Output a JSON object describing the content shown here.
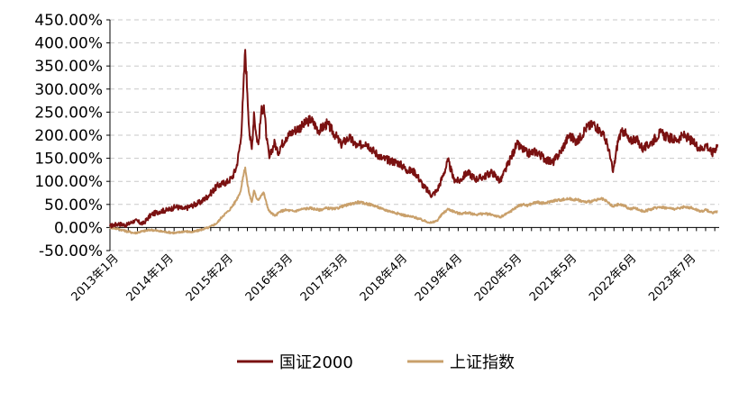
{
  "chart_data": {
    "type": "line",
    "title": "",
    "xlabel": "",
    "ylabel": "",
    "ylim": [
      -50,
      450
    ],
    "yticks": [
      "450.00%",
      "400.00%",
      "350.00%",
      "300.00%",
      "250.00%",
      "200.00%",
      "150.00%",
      "100.00%",
      "50.00%",
      "0.00%",
      "-50.00%"
    ],
    "ytick_values": [
      450,
      400,
      350,
      300,
      250,
      200,
      150,
      100,
      50,
      0,
      -50
    ],
    "xticks": [
      "2013年1月",
      "2014年1月",
      "2015年2月",
      "2016年3月",
      "2017年3月",
      "2018年4月",
      "2019年4月",
      "2020年5月",
      "2021年5月",
      "2022年6月",
      "2023年7月"
    ],
    "xtick_values": [
      2013.0,
      2014.0,
      2015.083,
      2016.167,
      2017.167,
      2018.25,
      2019.25,
      2020.333,
      2021.333,
      2022.417,
      2023.5
    ],
    "xlim": [
      2013.0,
      2024.08
    ],
    "grid": "horizontal dashed",
    "legend_position": "bottom",
    "series": [
      {
        "name": "国证2000",
        "color": "#7a1111",
        "x": [
          2013.0,
          2013.15,
          2013.3,
          2013.45,
          2013.6,
          2013.75,
          2013.9,
          2014.05,
          2014.2,
          2014.35,
          2014.5,
          2014.65,
          2014.8,
          2014.95,
          2015.05,
          2015.15,
          2015.22,
          2015.3,
          2015.38,
          2015.42,
          2015.46,
          2015.5,
          2015.54,
          2015.58,
          2015.62,
          2015.66,
          2015.7,
          2015.75,
          2015.8,
          2015.85,
          2015.9,
          2015.95,
          2016.0,
          2016.05,
          2016.1,
          2016.2,
          2016.35,
          2016.5,
          2016.65,
          2016.8,
          2016.95,
          2017.1,
          2017.2,
          2017.35,
          2017.5,
          2017.65,
          2017.8,
          2017.95,
          2018.1,
          2018.25,
          2018.4,
          2018.55,
          2018.7,
          2018.85,
          2018.95,
          2019.05,
          2019.15,
          2019.25,
          2019.35,
          2019.5,
          2019.65,
          2019.8,
          2019.95,
          2020.1,
          2020.25,
          2020.4,
          2020.5,
          2020.6,
          2020.75,
          2020.9,
          2021.05,
          2021.2,
          2021.35,
          2021.5,
          2021.65,
          2021.8,
          2021.95,
          2022.05,
          2022.15,
          2022.25,
          2022.35,
          2022.45,
          2022.55,
          2022.7,
          2022.85,
          2023.0,
          2023.15,
          2023.3,
          2023.45,
          2023.6,
          2023.75,
          2023.85,
          2023.95,
          2024.05
        ],
        "values": [
          3,
          8,
          5,
          15,
          8,
          28,
          35,
          38,
          45,
          40,
          48,
          55,
          70,
          90,
          95,
          100,
          108,
          130,
          190,
          280,
          385,
          290,
          200,
          170,
          250,
          200,
          180,
          250,
          265,
          190,
          150,
          170,
          185,
          160,
          175,
          195,
          210,
          220,
          235,
          210,
          225,
          200,
          180,
          195,
          175,
          185,
          165,
          150,
          145,
          140,
          125,
          120,
          90,
          70,
          80,
          110,
          145,
          105,
          100,
          120,
          105,
          110,
          120,
          100,
          140,
          180,
          170,
          160,
          165,
          150,
          140,
          165,
          200,
          185,
          215,
          225,
          205,
          180,
          120,
          195,
          210,
          185,
          195,
          170,
          185,
          205,
          195,
          190,
          200,
          185,
          170,
          180,
          160,
          180
        ]
      },
      {
        "name": "上证指数",
        "color": "#c9a06b",
        "x": [
          2013.0,
          2013.15,
          2013.3,
          2013.45,
          2013.6,
          2013.75,
          2013.9,
          2014.05,
          2014.2,
          2014.35,
          2014.5,
          2014.65,
          2014.8,
          2014.95,
          2015.05,
          2015.15,
          2015.22,
          2015.3,
          2015.38,
          2015.42,
          2015.46,
          2015.5,
          2015.54,
          2015.58,
          2015.62,
          2015.66,
          2015.7,
          2015.75,
          2015.8,
          2015.85,
          2015.9,
          2015.95,
          2016.0,
          2016.05,
          2016.1,
          2016.2,
          2016.35,
          2016.5,
          2016.65,
          2016.8,
          2016.95,
          2017.1,
          2017.2,
          2017.35,
          2017.5,
          2017.65,
          2017.8,
          2017.95,
          2018.1,
          2018.25,
          2018.4,
          2018.55,
          2018.7,
          2018.85,
          2018.95,
          2019.05,
          2019.15,
          2019.25,
          2019.35,
          2019.5,
          2019.65,
          2019.8,
          2019.95,
          2020.1,
          2020.25,
          2020.4,
          2020.5,
          2020.6,
          2020.75,
          2020.9,
          2021.05,
          2021.2,
          2021.35,
          2021.5,
          2021.65,
          2021.8,
          2021.95,
          2022.05,
          2022.15,
          2022.25,
          2022.35,
          2022.45,
          2022.55,
          2022.7,
          2022.85,
          2023.0,
          2023.15,
          2023.3,
          2023.45,
          2023.6,
          2023.75,
          2023.85,
          2023.95,
          2024.05
        ],
        "values": [
          0,
          -3,
          -8,
          -12,
          -8,
          -5,
          -8,
          -10,
          -12,
          -8,
          -10,
          -5,
          0,
          10,
          25,
          35,
          45,
          60,
          80,
          110,
          130,
          95,
          70,
          55,
          80,
          65,
          60,
          70,
          75,
          50,
          35,
          30,
          25,
          30,
          35,
          38,
          35,
          40,
          42,
          38,
          42,
          40,
          45,
          50,
          55,
          52,
          48,
          40,
          35,
          30,
          25,
          22,
          15,
          10,
          15,
          30,
          40,
          35,
          30,
          32,
          28,
          30,
          28,
          22,
          32,
          45,
          50,
          48,
          55,
          52,
          58,
          60,
          62,
          60,
          55,
          58,
          62,
          55,
          45,
          50,
          48,
          40,
          42,
          35,
          40,
          45,
          42,
          40,
          45,
          42,
          35,
          38,
          32,
          35
        ]
      }
    ]
  }
}
